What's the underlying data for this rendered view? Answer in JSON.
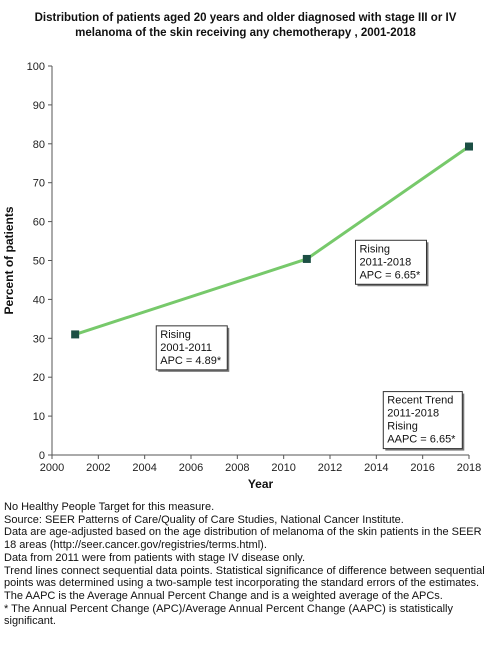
{
  "chart_data": {
    "type": "line",
    "title": "Distribution of patients aged 20 years and older diagnosed with stage III or IV melanoma of the skin receiving any chemotherapy , 2001-2018",
    "xlabel": "Year",
    "ylabel": "Percent of patients",
    "xlim": [
      2000,
      2018
    ],
    "ylim": [
      0,
      100
    ],
    "x_ticks": [
      "2000",
      "2002",
      "2004",
      "2006",
      "2008",
      "2010",
      "2012",
      "2014",
      "2016",
      "2018"
    ],
    "y_ticks": [
      "0",
      "10",
      "20",
      "30",
      "40",
      "50",
      "60",
      "70",
      "80",
      "90",
      "100"
    ],
    "grid": false,
    "series": [
      {
        "points": [
          {
            "x": 2001,
            "y": 31.0
          },
          {
            "x": 2011,
            "y": 50.4
          },
          {
            "x": 2018,
            "y": 79.3
          }
        ],
        "line_color": "#77c96b",
        "marker_color": "#1c4f44"
      }
    ],
    "annotations": [
      {
        "lines": [
          "Rising",
          "2001-2011",
          "APC =  4.89*"
        ],
        "anchor": {
          "x": 2004.5,
          "y": 33.2
        }
      },
      {
        "lines": [
          "Rising",
          "2011-2018",
          "APC =  6.65*"
        ],
        "anchor": {
          "x": 2013.1,
          "y": 55.2
        }
      },
      {
        "lines": [
          "Recent Trend",
          "2011-2018",
          "Rising",
          "AAPC =  6.65*"
        ],
        "anchor": {
          "x": 2014.3,
          "y": 16.3
        }
      }
    ]
  },
  "footnotes": [
    "No Healthy People Target for this measure.",
    "Source: SEER Patterns of Care/Quality of Care Studies, National Cancer Institute.",
    "Data are age-adjusted based on the age distribution of melanoma of the skin patients in the SEER 18 areas (http://seer.cancer.gov/registries/terms.html).",
    "Data from 2011 were from patients with stage IV disease only.",
    "Trend lines connect sequential data points. Statistical significance of difference between sequential points was determined using a two-sample test incorporating the standard errors of the estimates.",
    "The AAPC is the Average Annual Percent Change and is a weighted average of the APCs.",
    "* The Annual Percent Change (APC)/Average Annual Percent Change (AAPC) is statistically significant."
  ]
}
